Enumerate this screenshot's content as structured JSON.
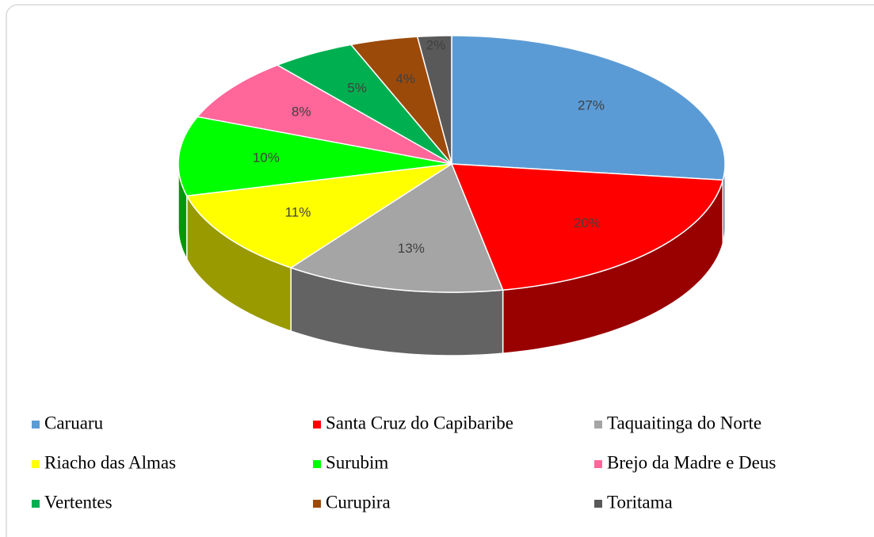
{
  "chart_data": {
    "type": "pie",
    "categories": [
      "Caruaru",
      "Santa Cruz do Capibaribe",
      "Taquaitinga do Norte",
      "Riacho das Almas",
      "Surubim",
      "Brejo da Madre e Deus",
      "Vertentes",
      "Curupira",
      "Toritama"
    ],
    "values": [
      27,
      20,
      13,
      11,
      10,
      8,
      5,
      4,
      2
    ],
    "value_labels": [
      "27%",
      "20%",
      "13%",
      "11%",
      "10%",
      "8%",
      "5%",
      "4%",
      "2%"
    ],
    "colors": [
      "#5b9bd5",
      "#ff0000",
      "#a5a5a5",
      "#ffff00",
      "#00ff00",
      "#ff6699",
      "#00b050",
      "#9c4a0a",
      "#595959"
    ],
    "legend": "bottom"
  }
}
